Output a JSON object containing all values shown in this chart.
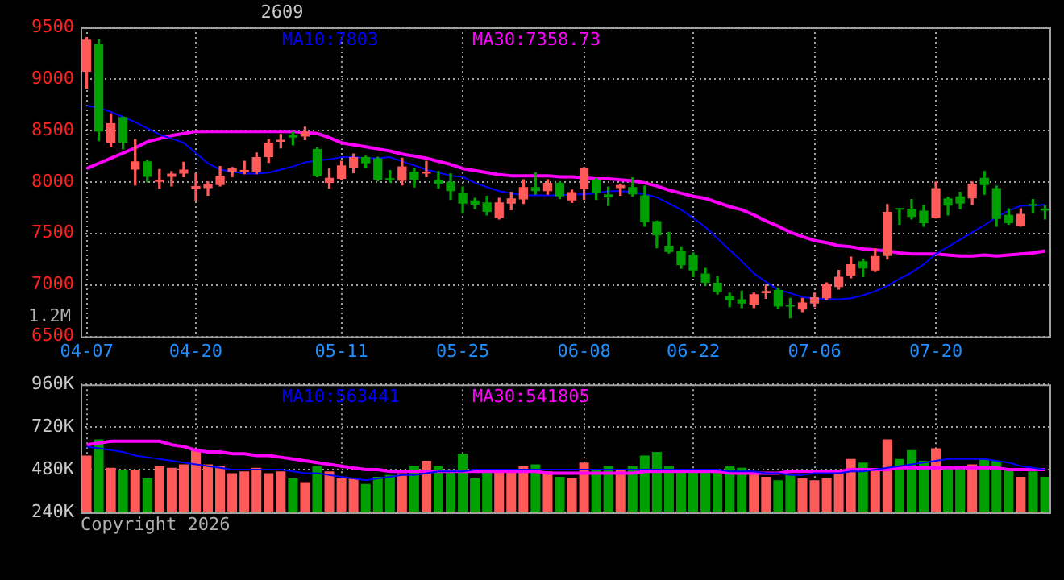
{
  "chart_data": [
    {
      "type": "candlestick",
      "title": "2609",
      "categories": [
        "04-07",
        null,
        null,
        null,
        null,
        null,
        null,
        null,
        null,
        "04-20",
        null,
        null,
        null,
        null,
        null,
        null,
        null,
        null,
        null,
        null,
        null,
        "05-11",
        null,
        null,
        null,
        null,
        null,
        null,
        null,
        null,
        null,
        "05-25",
        null,
        null,
        null,
        null,
        null,
        null,
        null,
        null,
        null,
        "06-08",
        null,
        null,
        null,
        null,
        null,
        null,
        null,
        null,
        "06-22",
        null,
        null,
        null,
        null,
        null,
        null,
        null,
        null,
        null,
        "07-06",
        null,
        null,
        null,
        null,
        null,
        null,
        null,
        null,
        null,
        "07-20",
        null,
        null,
        null,
        null,
        null,
        null,
        null,
        null,
        null
      ],
      "ohlc": [
        [
          9070,
          9400,
          8910,
          9380
        ],
        [
          9340,
          9380,
          8400,
          8490
        ],
        [
          8380,
          8660,
          8340,
          8570
        ],
        [
          8630,
          8630,
          8320,
          8380
        ],
        [
          8120,
          8410,
          7970,
          8200
        ],
        [
          8200,
          8210,
          8000,
          8050
        ],
        [
          8000,
          8120,
          7940,
          8020
        ],
        [
          8050,
          8100,
          7960,
          8080
        ],
        [
          8080,
          8190,
          8050,
          8120
        ],
        [
          7930,
          8080,
          7820,
          7960
        ],
        [
          7940,
          8000,
          7870,
          7980
        ],
        [
          7970,
          8150,
          7960,
          8060
        ],
        [
          8100,
          8140,
          8050,
          8140
        ],
        [
          8100,
          8200,
          8080,
          8110
        ],
        [
          8100,
          8280,
          8080,
          8240
        ],
        [
          8240,
          8410,
          8190,
          8380
        ],
        [
          8390,
          8460,
          8330,
          8410
        ],
        [
          8460,
          8480,
          8360,
          8430
        ],
        [
          8440,
          8530,
          8410,
          8490
        ],
        [
          8320,
          8330,
          8050,
          8060
        ],
        [
          7990,
          8130,
          7940,
          8040
        ],
        [
          8030,
          8200,
          8020,
          8160
        ],
        [
          8140,
          8270,
          8090,
          8240
        ],
        [
          8240,
          8250,
          8140,
          8180
        ],
        [
          8230,
          8240,
          8010,
          8020
        ],
        [
          8030,
          8110,
          8000,
          8020
        ],
        [
          8010,
          8230,
          7970,
          8150
        ],
        [
          8100,
          8130,
          7950,
          8020
        ],
        [
          8080,
          8200,
          8050,
          8100
        ],
        [
          8020,
          8100,
          7940,
          7980
        ],
        [
          8000,
          8080,
          7830,
          7910
        ],
        [
          7890,
          7950,
          7700,
          7790
        ],
        [
          7820,
          7840,
          7740,
          7780
        ],
        [
          7800,
          7860,
          7680,
          7710
        ],
        [
          7650,
          7840,
          7640,
          7800
        ],
        [
          7790,
          7900,
          7730,
          7840
        ],
        [
          7830,
          8020,
          7790,
          7950
        ],
        [
          7950,
          8090,
          7880,
          7910
        ],
        [
          7910,
          8020,
          7880,
          7990
        ],
        [
          7990,
          8000,
          7840,
          7860
        ],
        [
          7820,
          7920,
          7800,
          7900
        ],
        [
          7930,
          8140,
          7830,
          8140
        ],
        [
          8020,
          8030,
          7830,
          7890
        ],
        [
          7880,
          7950,
          7770,
          7850
        ],
        [
          7940,
          7980,
          7870,
          7970
        ],
        [
          7950,
          8040,
          7860,
          7880
        ],
        [
          7870,
          7960,
          7570,
          7610
        ],
        [
          7620,
          7620,
          7360,
          7480
        ],
        [
          7380,
          7510,
          7310,
          7320
        ],
        [
          7330,
          7370,
          7160,
          7190
        ],
        [
          7290,
          7310,
          7080,
          7140
        ],
        [
          7110,
          7160,
          7000,
          7020
        ],
        [
          7020,
          7080,
          6910,
          6930
        ],
        [
          6890,
          6920,
          6790,
          6850
        ],
        [
          6860,
          6940,
          6780,
          6820
        ],
        [
          6810,
          6920,
          6780,
          6910
        ],
        [
          6920,
          7000,
          6870,
          6940
        ],
        [
          6950,
          6970,
          6770,
          6790
        ],
        [
          6800,
          6870,
          6680,
          6790
        ],
        [
          6760,
          6870,
          6740,
          6830
        ],
        [
          6820,
          6920,
          6790,
          6880
        ],
        [
          6870,
          7020,
          6860,
          7010
        ],
        [
          6980,
          7140,
          6960,
          7080
        ],
        [
          7090,
          7270,
          7070,
          7200
        ],
        [
          7230,
          7250,
          7080,
          7160
        ],
        [
          7140,
          7350,
          7130,
          7280
        ],
        [
          7280,
          7780,
          7250,
          7710
        ],
        [
          7740,
          7740,
          7590,
          7730
        ],
        [
          7740,
          7830,
          7640,
          7660
        ],
        [
          7720,
          7770,
          7570,
          7600
        ],
        [
          7650,
          8000,
          7650,
          7940
        ],
        [
          7840,
          7850,
          7680,
          7770
        ],
        [
          7860,
          7900,
          7740,
          7790
        ],
        [
          7840,
          8000,
          7780,
          7980
        ],
        [
          8040,
          8100,
          7880,
          7970
        ],
        [
          7940,
          7960,
          7570,
          7640
        ],
        [
          7680,
          7740,
          7590,
          7600
        ],
        [
          7570,
          7740,
          7570,
          7690
        ],
        [
          7780,
          7830,
          7700,
          7770
        ],
        [
          7740,
          7770,
          7640,
          7720
        ]
      ],
      "series": [
        {
          "type": "line",
          "name": "MA10:7803",
          "color": "#0000ff",
          "values": [
            8740,
            8720,
            8680,
            8630,
            8580,
            8520,
            8460,
            8420,
            8380,
            8280,
            8180,
            8120,
            8100,
            8080,
            8080,
            8090,
            8120,
            8150,
            8190,
            8210,
            8220,
            8240,
            8240,
            8230,
            8230,
            8240,
            8200,
            8160,
            8120,
            8090,
            8060,
            8050,
            7990,
            7950,
            7910,
            7890,
            7870,
            7870,
            7870,
            7870,
            7880,
            7880,
            7890,
            7910,
            7910,
            7900,
            7880,
            7850,
            7790,
            7730,
            7650,
            7560,
            7450,
            7340,
            7230,
            7110,
            7030,
            6950,
            6920,
            6880,
            6870,
            6860,
            6860,
            6870,
            6900,
            6940,
            6990,
            7060,
            7120,
            7200,
            7300,
            7370,
            7440,
            7510,
            7580,
            7660,
            7720,
            7770,
            7770,
            7780
          ]
        },
        {
          "type": "line",
          "name": "MA30:7358.73",
          "color": "#ff00ff",
          "values": [
            8130,
            8180,
            8230,
            8280,
            8330,
            8390,
            8420,
            8450,
            8470,
            8490,
            8490,
            8490,
            8490,
            8490,
            8490,
            8490,
            8490,
            8490,
            8480,
            8470,
            8430,
            8380,
            8360,
            8340,
            8320,
            8300,
            8270,
            8250,
            8230,
            8200,
            8170,
            8130,
            8110,
            8090,
            8070,
            8060,
            8060,
            8060,
            8060,
            8050,
            8050,
            8040,
            8030,
            8030,
            8020,
            8010,
            7990,
            7960,
            7920,
            7890,
            7860,
            7840,
            7800,
            7760,
            7730,
            7680,
            7620,
            7570,
            7510,
            7470,
            7430,
            7410,
            7380,
            7370,
            7350,
            7340,
            7330,
            7310,
            7300,
            7300,
            7300,
            7290,
            7280,
            7280,
            7290,
            7280,
            7290,
            7300,
            7310,
            7330
          ]
        }
      ],
      "ylim": [
        6500,
        9500
      ],
      "yticks": [
        6500,
        7000,
        7500,
        8000,
        8500,
        9000,
        9500
      ],
      "grid": true,
      "legend": "top",
      "marker": "none",
      "annotations": [
        "1.2M"
      ]
    },
    {
      "type": "bar",
      "categories": [
        null,
        null,
        null,
        null,
        null,
        null,
        null,
        null,
        null,
        null,
        null,
        null,
        null,
        null,
        null,
        null,
        null,
        null,
        null,
        null,
        null,
        null,
        null,
        null,
        null,
        null,
        null,
        null,
        null,
        null,
        null,
        null,
        null,
        null,
        null,
        null,
        null,
        null,
        null,
        null,
        null,
        null,
        null,
        null,
        null,
        null,
        null,
        null,
        null,
        null,
        null,
        null,
        null,
        null,
        null,
        null,
        null,
        null,
        null,
        null,
        null,
        null,
        null,
        null,
        null,
        null,
        null,
        null,
        null,
        null,
        null,
        null,
        null,
        null,
        null,
        null,
        null,
        null,
        null,
        null
      ],
      "series": [
        {
          "values": [
            560000,
            650000,
            490000,
            480000,
            480000,
            430000,
            500000,
            490000,
            510000,
            590000,
            510000,
            500000,
            460000,
            470000,
            490000,
            460000,
            470000,
            430000,
            410000,
            500000,
            470000,
            430000,
            430000,
            400000,
            440000,
            450000,
            460000,
            500000,
            530000,
            500000,
            480000,
            570000,
            430000,
            470000,
            470000,
            480000,
            500000,
            510000,
            470000,
            440000,
            430000,
            520000,
            480000,
            500000,
            480000,
            500000,
            560000,
            580000,
            500000,
            480000,
            470000,
            470000,
            470000,
            500000,
            490000,
            470000,
            440000,
            420000,
            450000,
            430000,
            420000,
            430000,
            470000,
            540000,
            520000,
            480000,
            650000,
            540000,
            590000,
            530000,
            600000,
            500000,
            490000,
            510000,
            540000,
            530000,
            480000,
            440000,
            470000,
            440000
          ],
          "colors": [
            "#ff5a5a",
            "#00a000",
            "#ff5a5a",
            "#00a000",
            "#ff5a5a",
            "#00a000",
            "#ff5a5a",
            "#ff5a5a",
            "#ff5a5a",
            "#ff5a5a",
            "#ff5a5a",
            "#ff5a5a",
            "#ff5a5a",
            "#ff5a5a",
            "#ff5a5a",
            "#ff5a5a",
            "#ff5a5a",
            "#00a000",
            "#ff5a5a",
            "#00a000",
            "#ff5a5a",
            "#ff5a5a",
            "#ff5a5a",
            "#00a000",
            "#00a000",
            "#00a000",
            "#ff5a5a",
            "#00a000",
            "#ff5a5a",
            "#00a000",
            "#00a000",
            "#00a000",
            "#00a000",
            "#00a000",
            "#ff5a5a",
            "#ff5a5a",
            "#ff5a5a",
            "#00a000",
            "#ff5a5a",
            "#00a000",
            "#ff5a5a",
            "#ff5a5a",
            "#00a000",
            "#00a000",
            "#ff5a5a",
            "#00a000",
            "#00a000",
            "#00a000",
            "#00a000",
            "#00a000",
            "#00a000",
            "#00a000",
            "#00a000",
            "#00a000",
            "#00a000",
            "#ff5a5a",
            "#ff5a5a",
            "#00a000",
            "#00a000",
            "#ff5a5a",
            "#ff5a5a",
            "#ff5a5a",
            "#ff5a5a",
            "#ff5a5a",
            "#00a000",
            "#ff5a5a",
            "#ff5a5a",
            "#00a000",
            "#00a000",
            "#00a000",
            "#ff5a5a",
            "#00a000",
            "#00a000",
            "#ff5a5a",
            "#00a000",
            "#00a000",
            "#00a000",
            "#ff5a5a",
            "#00a000",
            "#00a000"
          ]
        },
        {
          "type": "line",
          "name": "MA10:563441",
          "color": "#0000ff",
          "values": [
            610000,
            600000,
            590000,
            580000,
            560000,
            550000,
            540000,
            530000,
            520000,
            510000,
            500000,
            490000,
            480000,
            480000,
            480000,
            480000,
            480000,
            470000,
            460000,
            460000,
            450000,
            440000,
            430000,
            420000,
            430000,
            440000,
            450000,
            450000,
            460000,
            470000,
            470000,
            470000,
            480000,
            480000,
            480000,
            480000,
            480000,
            480000,
            480000,
            480000,
            480000,
            480000,
            480000,
            480000,
            480000,
            480000,
            480000,
            480000,
            480000,
            480000,
            480000,
            480000,
            480000,
            470000,
            470000,
            470000,
            460000,
            460000,
            450000,
            450000,
            460000,
            460000,
            460000,
            470000,
            470000,
            480000,
            490000,
            500000,
            510000,
            520000,
            530000,
            540000,
            540000,
            540000,
            540000,
            530000,
            520000,
            500000,
            490000,
            480000
          ]
        },
        {
          "type": "line",
          "name": "MA30:541805",
          "color": "#ff00ff",
          "values": [
            620000,
            630000,
            640000,
            640000,
            640000,
            640000,
            640000,
            620000,
            610000,
            590000,
            580000,
            580000,
            570000,
            570000,
            560000,
            560000,
            550000,
            540000,
            530000,
            520000,
            510000,
            500000,
            490000,
            480000,
            480000,
            470000,
            470000,
            470000,
            470000,
            470000,
            470000,
            470000,
            470000,
            470000,
            470000,
            470000,
            470000,
            470000,
            460000,
            460000,
            460000,
            460000,
            460000,
            460000,
            460000,
            460000,
            470000,
            470000,
            470000,
            470000,
            470000,
            470000,
            470000,
            460000,
            460000,
            460000,
            460000,
            460000,
            470000,
            470000,
            470000,
            470000,
            470000,
            480000,
            480000,
            480000,
            480000,
            490000,
            490000,
            490000,
            490000,
            490000,
            490000,
            490000,
            490000,
            490000,
            480000,
            480000,
            480000,
            480000
          ]
        }
      ],
      "ylim": [
        240000,
        960000
      ],
      "yticks": [
        {
          "value": 240000,
          "label": "240K"
        },
        {
          "value": 480000,
          "label": "480K"
        },
        {
          "value": 720000,
          "label": "720K"
        },
        {
          "value": 960000,
          "label": "960K"
        }
      ],
      "grid": true,
      "legend": "top",
      "marker": "none",
      "tick_labels": "y",
      "annotations": [
        "Copyright 2026"
      ]
    }
  ]
}
